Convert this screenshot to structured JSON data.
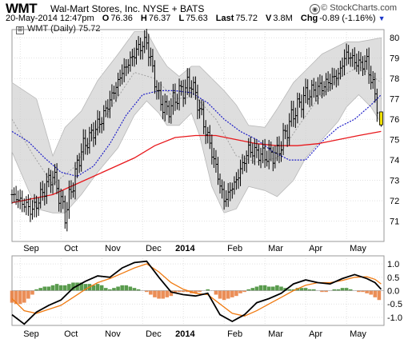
{
  "header": {
    "symbol": "WMT",
    "company": "Wal-Mart Stores, Inc.",
    "exchange": "NYSE + BATS",
    "copyright": "© StockCharts.com",
    "date": "20-May-2014 12:47pm",
    "open_label": "O",
    "open": "76.36",
    "high_label": "H",
    "high": "76.37",
    "low_label": "L",
    "low": "75.63",
    "last_label": "Last",
    "last": "75.72",
    "volume_label": "V",
    "volume": "3.8M",
    "change_label": "Chg",
    "change": "-0.89 (-1.16%)",
    "legend": "WMT (Daily) 75.72"
  },
  "colors": {
    "price_bar": "#000000",
    "bollinger_band": "#d8d8d8",
    "sma_200": "#e8181c",
    "sma_50": "#1e1ec8",
    "bollinger_mid": "#a0a0a0",
    "last_candle": "#f0e000",
    "macd_line": "#000000",
    "signal_line": "#f07a10",
    "hist_positive": "#3c8a2e",
    "hist_negative": "#e87a3a",
    "change_arrow": "#1a36c8"
  },
  "icons": {
    "legend_icon": "bar-chart-icon",
    "copyright_icon": "stockcharts-logo-icon"
  },
  "chart_data": [
    {
      "type": "line",
      "name": "price",
      "x_tick_labels": [
        "Sep",
        "Oct",
        "Nov",
        "Dec",
        "2014",
        "Feb",
        "Mar",
        "Apr",
        "May"
      ],
      "x_tick_months": [
        0.2,
        1.2,
        2.2,
        3.2,
        4.2,
        5.2,
        6.2,
        7.2,
        8.2
      ],
      "y_ticks": [
        71,
        72,
        73,
        74,
        75,
        76,
        77,
        78,
        79,
        80
      ],
      "ylim": [
        70,
        80.4
      ],
      "xlim_months": [
        0,
        9.12
      ],
      "grid": true,
      "close_x": [
        0.0,
        0.5,
        1.0,
        1.3,
        1.7,
        2.2,
        2.7,
        3.1,
        3.3,
        3.6,
        3.8,
        4.1,
        4.4,
        4.6,
        4.9,
        5.2,
        5.5,
        5.8,
        6.2,
        6.5,
        6.9,
        7.2,
        7.6,
        8.0,
        8.2,
        8.5,
        8.7,
        8.9,
        9.05
      ],
      "close_y": [
        72.3,
        71.5,
        73.3,
        71.3,
        74.5,
        76.0,
        78.3,
        79.5,
        79.8,
        77.0,
        76.4,
        77.3,
        77.8,
        76.5,
        74.4,
        72.0,
        73.0,
        74.5,
        74.2,
        74.3,
        76.3,
        77.2,
        77.6,
        78.2,
        79.2,
        78.7,
        78.8,
        77.2,
        75.72
      ],
      "upper_band_x": [
        0.0,
        0.6,
        1.0,
        1.3,
        1.7,
        2.1,
        2.6,
        3.0,
        3.3,
        3.6,
        3.8,
        4.1,
        4.4,
        4.6,
        4.9,
        5.2,
        5.5,
        5.8,
        6.2,
        6.5,
        6.9,
        7.2,
        7.6,
        8.0,
        8.2,
        8.5,
        8.8,
        9.05
      ],
      "upper_band_y": [
        77.8,
        77.0,
        74.2,
        75.6,
        76.4,
        77.9,
        79.2,
        80.3,
        80.3,
        79.2,
        78.6,
        78.1,
        78.6,
        78.6,
        78.0,
        77.4,
        76.7,
        75.7,
        75.6,
        76.5,
        77.8,
        78.4,
        79.2,
        79.6,
        79.8,
        79.8,
        79.9,
        80.0
      ],
      "lower_band_x": [
        0.0,
        0.6,
        1.0,
        1.3,
        1.7,
        2.1,
        2.6,
        3.0,
        3.3,
        3.6,
        3.8,
        4.1,
        4.4,
        4.6,
        4.9,
        5.2,
        5.5,
        5.8,
        6.2,
        6.5,
        6.9,
        7.2,
        7.6,
        8.0,
        8.2,
        8.5,
        8.8,
        9.05
      ],
      "lower_band_y": [
        74.4,
        71.6,
        71.4,
        71.4,
        72.3,
        73.4,
        74.6,
        76.2,
        76.9,
        76.3,
        75.7,
        75.7,
        76.3,
        75.2,
        72.7,
        71.4,
        71.6,
        72.7,
        72.5,
        72.2,
        73.0,
        74.1,
        75.0,
        75.9,
        76.6,
        77.2,
        76.6,
        75.8
      ],
      "sma_200_x": [
        0.0,
        1.0,
        2.0,
        3.0,
        3.5,
        4.0,
        4.5,
        5.0,
        5.5,
        6.0,
        6.5,
        7.0,
        7.5,
        8.0,
        8.5,
        9.05
      ],
      "sma_200_y": [
        71.9,
        72.3,
        73.2,
        74.1,
        74.7,
        75.1,
        75.2,
        75.2,
        75.0,
        74.8,
        74.7,
        74.7,
        74.8,
        75.0,
        75.2,
        75.4
      ],
      "sma_50_x": [
        0.0,
        0.4,
        0.8,
        1.2,
        1.6,
        2.0,
        2.4,
        2.8,
        3.2,
        3.6,
        4.0,
        4.4,
        4.8,
        5.2,
        5.6,
        6.0,
        6.4,
        6.8,
        7.2,
        7.6,
        8.0,
        8.4,
        8.8,
        9.05
      ],
      "sma_50_y": [
        75.4,
        74.9,
        74.1,
        73.4,
        73.2,
        73.7,
        74.8,
        76.2,
        77.2,
        77.4,
        77.4,
        77.3,
        76.8,
        76.0,
        75.4,
        75.0,
        74.4,
        74.0,
        74.0,
        74.9,
        75.6,
        76.0,
        76.7,
        77.2
      ],
      "bollinger_mid_x": [
        0.0,
        0.5,
        1.0,
        1.5,
        2.0,
        2.5,
        3.0,
        3.5,
        4.0,
        4.5,
        5.0,
        5.5,
        6.0,
        6.5,
        7.0,
        7.5,
        8.0,
        8.5,
        9.05
      ],
      "bollinger_mid_y": [
        76.0,
        74.3,
        72.8,
        73.6,
        75.2,
        76.8,
        78.3,
        78.0,
        77.0,
        77.1,
        76.0,
        74.2,
        73.9,
        74.1,
        75.6,
        77.0,
        78.0,
        78.6,
        77.8
      ],
      "last_bar": {
        "open": 76.36,
        "high": 76.37,
        "low": 75.63,
        "close": 75.72
      }
    },
    {
      "type": "line",
      "name": "macd",
      "y_ticks": [
        -1.0,
        -0.5,
        0.0,
        0.5,
        1.0
      ],
      "y_tick_labels": [
        "-1.0",
        "-0.5",
        "0.0",
        "0.5",
        "1.0"
      ],
      "ylim": [
        -1.3,
        1.3
      ],
      "x_tick_labels": [
        "Sep",
        "Oct",
        "Nov",
        "Dec",
        "2014",
        "Feb",
        "Mar",
        "Apr",
        "May"
      ],
      "macd_x": [
        0.0,
        0.3,
        0.6,
        0.9,
        1.2,
        1.5,
        1.8,
        2.1,
        2.4,
        2.7,
        3.0,
        3.3,
        3.6,
        3.9,
        4.2,
        4.5,
        4.8,
        5.1,
        5.4,
        5.7,
        6.0,
        6.3,
        6.6,
        6.9,
        7.2,
        7.5,
        7.8,
        8.1,
        8.4,
        8.7,
        8.9,
        9.05
      ],
      "macd_y": [
        -0.9,
        -1.25,
        -0.8,
        -0.55,
        -0.35,
        0.1,
        0.35,
        0.55,
        0.5,
        0.85,
        1.05,
        1.1,
        0.5,
        -0.05,
        -0.15,
        -0.2,
        -0.1,
        -0.9,
        -1.15,
        -0.9,
        -0.45,
        -0.3,
        -0.1,
        0.25,
        0.4,
        0.3,
        0.25,
        0.45,
        0.6,
        0.45,
        0.3,
        0.05
      ],
      "signal_x": [
        0.0,
        0.3,
        0.6,
        0.9,
        1.2,
        1.5,
        1.8,
        2.1,
        2.4,
        2.7,
        3.0,
        3.3,
        3.6,
        3.9,
        4.2,
        4.5,
        4.8,
        5.1,
        5.4,
        5.7,
        6.0,
        6.3,
        6.6,
        6.9,
        7.2,
        7.5,
        7.8,
        8.1,
        8.4,
        8.7,
        8.9,
        9.05
      ],
      "signal_y": [
        -0.3,
        -0.75,
        -0.85,
        -0.7,
        -0.55,
        -0.25,
        0.05,
        0.3,
        0.45,
        0.65,
        0.85,
        1.0,
        0.7,
        0.3,
        0.05,
        -0.1,
        -0.15,
        -0.5,
        -0.85,
        -0.95,
        -0.75,
        -0.5,
        -0.25,
        0.0,
        0.2,
        0.3,
        0.3,
        0.38,
        0.5,
        0.52,
        0.42,
        0.25
      ],
      "hist_x": [
        0.0,
        0.1,
        0.2,
        0.3,
        0.4,
        0.5,
        0.6,
        0.7,
        0.8,
        0.9,
        1.0,
        1.1,
        1.2,
        1.3,
        1.4,
        1.5,
        1.6,
        1.7,
        1.8,
        1.9,
        2.0,
        2.1,
        2.2,
        2.3,
        2.4,
        2.5,
        2.6,
        2.7,
        2.8,
        2.9,
        3.0,
        3.1,
        3.2,
        3.3,
        3.4,
        3.5,
        3.6,
        3.7,
        3.8,
        3.9,
        4.0,
        4.1,
        4.2,
        4.3,
        4.4,
        4.5,
        4.6,
        4.7,
        4.8,
        4.9,
        5.0,
        5.1,
        5.2,
        5.3,
        5.4,
        5.5,
        5.6,
        5.7,
        5.8,
        5.9,
        6.0,
        6.1,
        6.2,
        6.3,
        6.4,
        6.5,
        6.6,
        6.7,
        6.8,
        6.9,
        7.0,
        7.1,
        7.2,
        7.3,
        7.4,
        7.5,
        7.6,
        7.7,
        7.8,
        7.9,
        8.0,
        8.1,
        8.2,
        8.3,
        8.4,
        8.5,
        8.6,
        8.7,
        8.8,
        8.9,
        9.0
      ],
      "hist_y": [
        -0.45,
        -0.5,
        -0.5,
        -0.45,
        -0.3,
        -0.15,
        0.05,
        0.1,
        0.15,
        0.15,
        0.2,
        0.25,
        0.2,
        0.2,
        0.25,
        0.3,
        0.3,
        0.3,
        0.25,
        0.25,
        0.2,
        0.25,
        0.2,
        0.1,
        0.05,
        0.1,
        0.15,
        0.2,
        0.2,
        0.15,
        0.1,
        0.05,
        0.0,
        -0.05,
        -0.15,
        -0.25,
        -0.3,
        -0.3,
        -0.25,
        -0.2,
        -0.1,
        -0.05,
        -0.05,
        -0.05,
        -0.1,
        -0.1,
        -0.05,
        0.0,
        0.05,
        0.0,
        -0.15,
        -0.3,
        -0.35,
        -0.3,
        -0.25,
        -0.2,
        -0.1,
        -0.05,
        0.05,
        0.1,
        0.15,
        0.2,
        0.2,
        0.15,
        0.15,
        0.2,
        0.15,
        0.1,
        0.05,
        0.05,
        0.1,
        0.1,
        0.1,
        0.05,
        0.05,
        0.0,
        -0.05,
        -0.05,
        0.0,
        0.05,
        0.05,
        0.1,
        0.1,
        0.05,
        0.0,
        -0.05,
        -0.05,
        -0.1,
        -0.15,
        -0.25,
        -0.35
      ]
    }
  ]
}
